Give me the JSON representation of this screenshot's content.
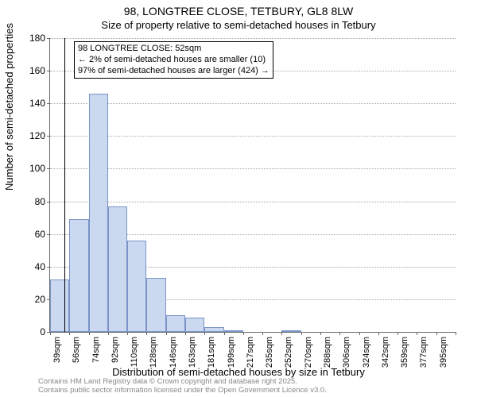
{
  "title": "98, LONGTREE CLOSE, TETBURY, GL8 8LW",
  "subtitle": "Size of property relative to semi-detached houses in Tetbury",
  "y_axis_label": "Number of semi-detached properties",
  "x_axis_label": "Distribution of semi-detached houses by size in Tetbury",
  "attribution_line1": "Contains HM Land Registry data © Crown copyright and database right 2025.",
  "attribution_line2": "Contains public sector information licensed under the Open Government Licence v3.0.",
  "annotation": {
    "line1": "← 2% of semi-detached houses are smaller (10)",
    "line2": "97% of semi-detached houses are larger (424) →",
    "header": "98 LONGTREE CLOSE: 52sqm"
  },
  "chart": {
    "type": "histogram",
    "ylim": [
      0,
      180
    ],
    "ytick_step": 20,
    "yticks": [
      0,
      20,
      40,
      60,
      80,
      100,
      120,
      140,
      160,
      180
    ],
    "x_categories": [
      "39sqm",
      "56sqm",
      "74sqm",
      "92sqm",
      "110sqm",
      "128sqm",
      "146sqm",
      "163sqm",
      "181sqm",
      "199sqm",
      "217sqm",
      "235sqm",
      "252sqm",
      "270sqm",
      "288sqm",
      "306sqm",
      "324sqm",
      "342sqm",
      "359sqm",
      "377sqm",
      "395sqm"
    ],
    "values": [
      32,
      69,
      146,
      77,
      56,
      33,
      10,
      9,
      3,
      1,
      0,
      0,
      1,
      0,
      0,
      0,
      0,
      0,
      0,
      0,
      0
    ],
    "reference_x": 52,
    "x_min": 39,
    "x_max": 395,
    "bar_color": "#cad8f0",
    "bar_border_color": "#7a94c8",
    "grid_color": "#aaaaaa",
    "axis_color": "#666666",
    "background": "#ffffff"
  }
}
